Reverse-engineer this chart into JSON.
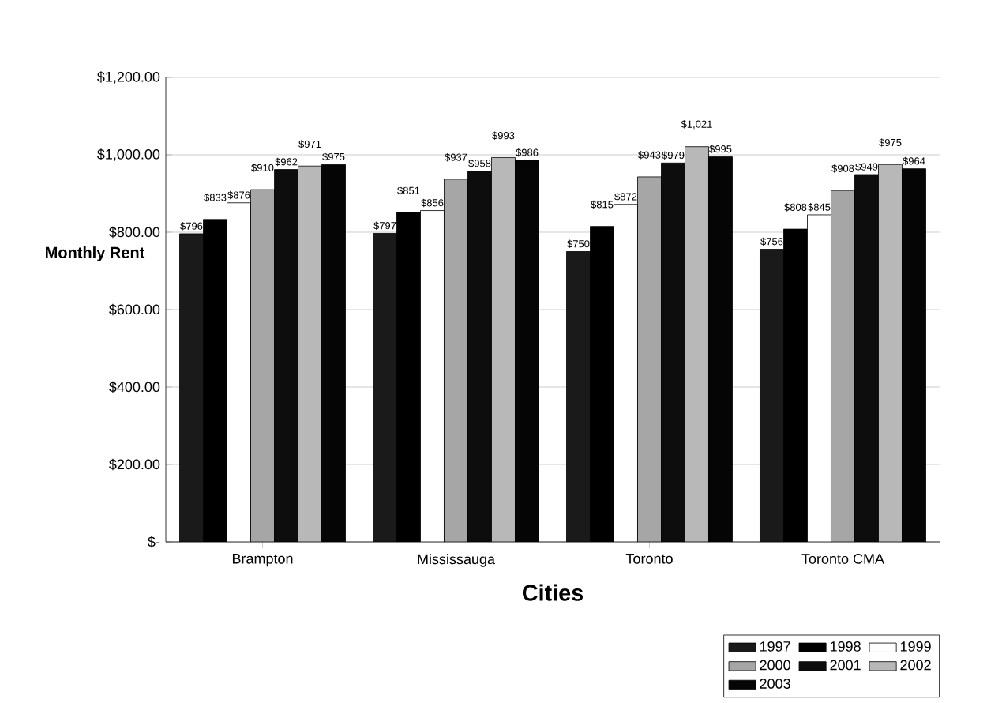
{
  "chart_data": {
    "type": "bar",
    "xlabel": "Cities",
    "ylabel": "Monthly Rent",
    "categories": [
      "Brampton",
      "Mississauga",
      "Toronto",
      "Toronto CMA"
    ],
    "series": [
      {
        "name": "1997",
        "color": "#1a1a1a",
        "values": [
          796,
          797,
          750,
          756
        ],
        "value_labels": [
          "$796",
          "$797",
          "$750",
          "$756"
        ]
      },
      {
        "name": "1998",
        "color": "#000000",
        "values": [
          833,
          851,
          815,
          808
        ],
        "value_labels": [
          "$833",
          "$851",
          "$815",
          "$808"
        ]
      },
      {
        "name": "1999",
        "color": "#ffffff",
        "values": [
          876,
          856,
          872,
          845
        ],
        "value_labels": [
          "$876",
          "$856",
          "$872",
          "$845"
        ]
      },
      {
        "name": "2000",
        "color": "#a6a6a6",
        "values": [
          910,
          937,
          943,
          908
        ],
        "value_labels": [
          "$910",
          "$937",
          "$943",
          "$908"
        ]
      },
      {
        "name": "2001",
        "color": "#0d0d0d",
        "values": [
          962,
          958,
          979,
          949
        ],
        "value_labels": [
          "$962",
          "$958",
          "$979",
          "$949"
        ]
      },
      {
        "name": "2002",
        "color": "#b8b8b8",
        "values": [
          971,
          993,
          1021,
          975
        ],
        "value_labels": [
          "$971",
          "$993",
          "$1,021",
          "$975"
        ]
      },
      {
        "name": "2003",
        "color": "#050505",
        "values": [
          975,
          986,
          995,
          964
        ],
        "value_labels": [
          "$975",
          "$986",
          "$995",
          "$964"
        ]
      }
    ],
    "ylim": [
      0,
      1200
    ],
    "yticks": [
      {
        "value": 0,
        "label": "$-"
      },
      {
        "value": 200,
        "label": "$200.00"
      },
      {
        "value": 400,
        "label": "$400.00"
      },
      {
        "value": 600,
        "label": "$600.00"
      },
      {
        "value": 800,
        "label": "$800.00"
      },
      {
        "value": 1000,
        "label": "$1,000.00"
      },
      {
        "value": 1200,
        "label": "$1,200.00"
      }
    ],
    "grid": "y",
    "legend": "bottom right"
  }
}
